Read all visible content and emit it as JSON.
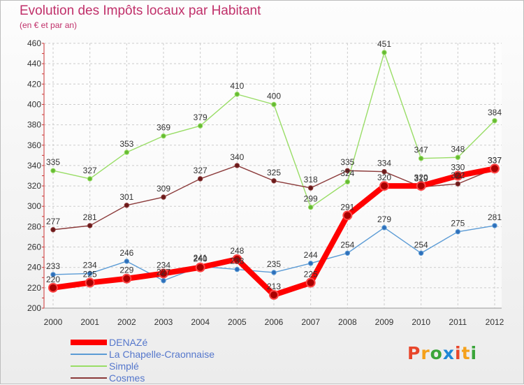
{
  "header": {
    "title": "Evolution des Impôts locaux par Habitant",
    "subtitle": "(en € et par an)"
  },
  "logo": {
    "text": "Proxiti",
    "colors": [
      "#e8462b",
      "#f5a11b",
      "#3aa53a",
      "#1f87d6",
      "#e8462b",
      "#f5a11b",
      "#3aa53a"
    ]
  },
  "chart_data": {
    "type": "line",
    "x": [
      "2000",
      "2001",
      "2002",
      "2003",
      "2004",
      "2005",
      "2006",
      "2007",
      "2008",
      "2009",
      "2010",
      "2011",
      "2012"
    ],
    "ylim": [
      200,
      460
    ],
    "yticks": [
      200,
      220,
      240,
      260,
      280,
      300,
      320,
      340,
      360,
      380,
      400,
      420,
      440,
      460
    ],
    "grid": true,
    "legend_position": "bottom-left",
    "series": [
      {
        "name": "DENAZé",
        "color": "#ff0000",
        "point_color": "#aa0000",
        "values": [
          220,
          225,
          229,
          234,
          240,
          248,
          213,
          225,
          291,
          320,
          320,
          330,
          337
        ],
        "labels": [
          "220",
          "225",
          "229",
          "234",
          "240",
          "248",
          "213",
          "225",
          "291",
          "320",
          "320",
          "330",
          "337"
        ]
      },
      {
        "name": "La Chapelle-Craonnaise",
        "color": "#5b9bd5",
        "point_color": "#2e6fba",
        "values": [
          233,
          234,
          246,
          227,
          241,
          238,
          235,
          244,
          254,
          279,
          254,
          275,
          281
        ],
        "labels": [
          "233",
          "234",
          "246",
          "227",
          "241",
          "238",
          "235",
          "244",
          "254",
          "279",
          "254",
          "275",
          "281"
        ]
      },
      {
        "name": "Simplé",
        "color": "#99dd66",
        "point_color": "#66bb33",
        "values": [
          335,
          327,
          353,
          369,
          379,
          410,
          400,
          299,
          324,
          451,
          347,
          348,
          384
        ],
        "labels": [
          "335",
          "327",
          "353",
          "369",
          "379",
          "410",
          "400",
          "299",
          "324",
          "451",
          "347",
          "348",
          "384"
        ]
      },
      {
        "name": "Cosmes",
        "color": "#8b3a3a",
        "point_color": "#6b1a1a",
        "values": [
          277,
          281,
          301,
          309,
          327,
          340,
          325,
          318,
          335,
          334,
          319,
          322,
          337
        ],
        "labels": [
          "277",
          "281",
          "301",
          "309",
          "327",
          "340",
          "325",
          "318",
          "335",
          "334",
          "319",
          "322",
          "337"
        ]
      }
    ]
  }
}
